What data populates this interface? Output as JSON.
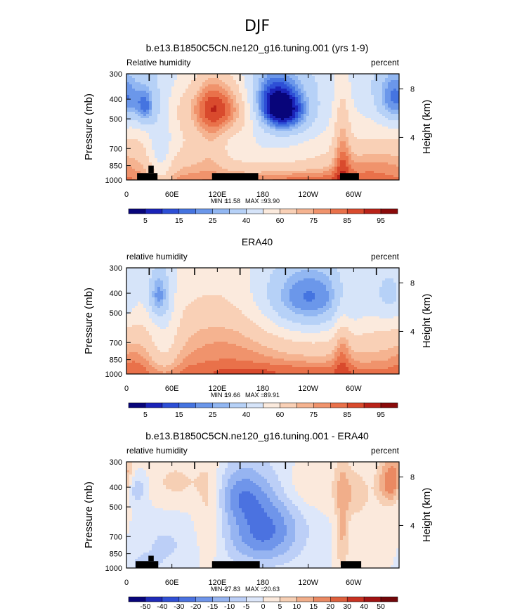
{
  "suptitle": "DJF",
  "palette": {
    "full": [
      "#08057a",
      "#1a23b8",
      "#2d4fd6",
      "#4574e0",
      "#6b97ea",
      "#92b7f2",
      "#b6d1f7",
      "#d6e4f9",
      "#fbeadd",
      "#f9d0b6",
      "#f5b390",
      "#f0936c",
      "#e9714a",
      "#d94a2d",
      "#b92218",
      "#8a0a0a"
    ],
    "diff": [
      "#08057a",
      "#1f2bb8",
      "#3150d5",
      "#4b72e0",
      "#6f95ea",
      "#96b4f1",
      "#bccff7",
      "#dde7fa",
      "#fbe9dc",
      "#f6cfb4",
      "#f1ae8a",
      "#ea8962",
      "#de603d",
      "#c83222",
      "#a11313",
      "#72070a"
    ]
  },
  "chart_data": [
    {
      "type": "heatmap",
      "panel_id": "model",
      "title": "b.e13.B1850C5CN.ne120_g16.tuning.001 (yrs 1-9)",
      "left_label": "Relative humidity",
      "right_label": "percent",
      "xlabel": "",
      "ylabel": "Pressure (mb)",
      "ylabel_right": "Height (km)",
      "x_ticks": [
        "0",
        "60E",
        "120E",
        "180",
        "120W",
        "60W"
      ],
      "x_range": [
        0,
        360
      ],
      "y_ticks": [
        "300",
        "400",
        "500",
        "700",
        "850",
        "1000"
      ],
      "y_range_mb": [
        300,
        1000
      ],
      "height_ticks": [
        "8",
        "4"
      ],
      "min_label": "MIN =",
      "min": "11.58",
      "max_label": "MAX =",
      "max": "93.90",
      "colorbar_levels": [
        5,
        10,
        15,
        20,
        25,
        30,
        40,
        50,
        60,
        70,
        75,
        80,
        85,
        90,
        95
      ],
      "colorbar_labels": [
        "5",
        "15",
        "25",
        "40",
        "60",
        "75",
        "85",
        "95"
      ],
      "palette": "full",
      "field": {
        "base_bottom": 80,
        "base_top": 45,
        "features": [
          {
            "lon": 135,
            "p": 430,
            "sx": 45,
            "sp": 110,
            "amp": 38
          },
          {
            "lon": 185,
            "p": 690,
            "sx": 70,
            "sp": 200,
            "amp": -15
          },
          {
            "lon": 25,
            "p": 440,
            "sx": 9,
            "sp": 70,
            "amp": -25
          },
          {
            "lon": 45,
            "p": 780,
            "sx": 12,
            "sp": 300,
            "amp": -20
          },
          {
            "lon": 355,
            "p": 400,
            "sx": 18,
            "sp": 90,
            "amp": -30
          },
          {
            "lon": 190,
            "p": 380,
            "sx": 28,
            "sp": 90,
            "amp": -35
          },
          {
            "lon": 205,
            "p": 470,
            "sx": 25,
            "sp": 80,
            "amp": -40
          },
          {
            "lon": 112,
            "p": 560,
            "sx": 15,
            "sp": 250,
            "amp": 12
          },
          {
            "lon": 285,
            "p": 650,
            "sx": 8,
            "sp": 350,
            "amp": 18
          },
          {
            "lon": 320,
            "p": 820,
            "sx": 30,
            "sp": 120,
            "amp": 6
          },
          {
            "lon": 230,
            "p": 980,
            "sx": 60,
            "sp": 60,
            "amp": 6
          }
        ]
      },
      "land_blocks": [
        {
          "lon0": 14,
          "lon1": 41,
          "p0": 925,
          "p1": 1000
        },
        {
          "lon0": 29,
          "lon1": 36,
          "p0": 850,
          "p1": 925
        },
        {
          "lon0": 113,
          "lon1": 174,
          "p0": 925,
          "p1": 1000
        },
        {
          "lon0": 282,
          "lon1": 307,
          "p0": 925,
          "p1": 1000
        }
      ]
    },
    {
      "type": "heatmap",
      "panel_id": "obs",
      "title": "ERA40",
      "left_label": "relative humidity",
      "right_label": "percent",
      "xlabel": "",
      "ylabel": "Pressure (mb)",
      "ylabel_right": "Height (km)",
      "x_ticks": [
        "0",
        "60E",
        "120E",
        "180",
        "120W",
        "60W"
      ],
      "x_range": [
        0,
        360
      ],
      "y_ticks": [
        "300",
        "400",
        "500",
        "700",
        "850",
        "1000"
      ],
      "y_range_mb": [
        300,
        1000
      ],
      "height_ticks": [
        "8",
        "4"
      ],
      "min_label": "MIN =",
      "min": "19.66",
      "max_label": "MAX =",
      "max": "89.91",
      "colorbar_levels": [
        5,
        10,
        15,
        20,
        25,
        30,
        40,
        50,
        60,
        70,
        75,
        80,
        85,
        90,
        95
      ],
      "colorbar_labels": [
        "5",
        "15",
        "25",
        "40",
        "60",
        "75",
        "85",
        "95"
      ],
      "palette": "full",
      "field": {
        "base_bottom": 80,
        "base_top": 52,
        "features": [
          {
            "lon": 240,
            "p": 420,
            "sx": 45,
            "sp": 120,
            "amp": -30
          },
          {
            "lon": 230,
            "p": 560,
            "sx": 60,
            "sp": 180,
            "amp": -10
          },
          {
            "lon": 42,
            "p": 410,
            "sx": 10,
            "sp": 80,
            "amp": -25
          },
          {
            "lon": 50,
            "p": 650,
            "sx": 14,
            "sp": 250,
            "amp": -15
          },
          {
            "lon": 350,
            "p": 420,
            "sx": 18,
            "sp": 100,
            "amp": -15
          },
          {
            "lon": 140,
            "p": 600,
            "sx": 50,
            "sp": 250,
            "amp": 10
          },
          {
            "lon": 285,
            "p": 700,
            "sx": 8,
            "sp": 300,
            "amp": 12
          },
          {
            "lon": 200,
            "p": 960,
            "sx": 90,
            "sp": 60,
            "amp": 5
          },
          {
            "lon": 10,
            "p": 900,
            "sx": 15,
            "sp": 150,
            "amp": 5
          }
        ]
      },
      "land_blocks": []
    },
    {
      "type": "heatmap",
      "panel_id": "diff",
      "title": "b.e13.B1850C5CN.ne120_g16.tuning.001 - ERA40",
      "left_label": "relative humidity",
      "right_label": "percent",
      "xlabel": "",
      "ylabel": "Pressure (mb)",
      "ylabel_right": "Height (km)",
      "x_ticks": [
        "0",
        "60E",
        "120E",
        "180",
        "120W",
        "60W"
      ],
      "x_range": [
        0,
        360
      ],
      "y_ticks": [
        "300",
        "400",
        "500",
        "700",
        "850",
        "1000"
      ],
      "y_range_mb": [
        300,
        1000
      ],
      "height_ticks": [
        "8",
        "4"
      ],
      "min_label": "MIN =",
      "min": "-27.83",
      "max_label": "MAX =",
      "max": "20.63",
      "colorbar_levels": [
        -50,
        -40,
        -30,
        -20,
        -15,
        -10,
        -5,
        0,
        5,
        10,
        15,
        20,
        30,
        40,
        50
      ],
      "colorbar_labels": [
        "-50",
        "-40",
        "-30",
        "-20",
        "-15",
        "-10",
        "-5",
        "0",
        "5",
        "10",
        "15",
        "20",
        "30",
        "40",
        "50"
      ],
      "palette": "diff",
      "field": {
        "base_bottom": 0,
        "base_top": 0,
        "features": [
          {
            "lon": 180,
            "p": 650,
            "sx": 35,
            "sp": 200,
            "amp": -22
          },
          {
            "lon": 150,
            "p": 430,
            "sx": 22,
            "sp": 90,
            "amp": -12
          },
          {
            "lon": 8,
            "p": 400,
            "sx": 12,
            "sp": 60,
            "amp": -22
          },
          {
            "lon": 355,
            "p": 380,
            "sx": 14,
            "sp": 70,
            "amp": 28
          },
          {
            "lon": 65,
            "p": 380,
            "sx": 30,
            "sp": 80,
            "amp": 6
          },
          {
            "lon": 110,
            "p": 560,
            "sx": 12,
            "sp": 220,
            "amp": 8
          },
          {
            "lon": 285,
            "p": 620,
            "sx": 6,
            "sp": 300,
            "amp": 10
          },
          {
            "lon": 240,
            "p": 400,
            "sx": 30,
            "sp": 80,
            "amp": 6
          },
          {
            "lon": 320,
            "p": 700,
            "sx": 25,
            "sp": 150,
            "amp": 3
          },
          {
            "lon": 50,
            "p": 780,
            "sx": 25,
            "sp": 150,
            "amp": -6
          },
          {
            "lon": 25,
            "p": 950,
            "sx": 12,
            "sp": 60,
            "amp": -8
          },
          {
            "lon": 300,
            "p": 430,
            "sx": 15,
            "sp": 80,
            "amp": 8
          }
        ]
      },
      "land_blocks": [
        {
          "lon0": 12,
          "lon1": 42,
          "p0": 925,
          "p1": 1000
        },
        {
          "lon0": 29,
          "lon1": 36,
          "p0": 870,
          "p1": 925
        },
        {
          "lon0": 113,
          "lon1": 176,
          "p0": 925,
          "p1": 1000
        },
        {
          "lon0": 283,
          "lon1": 310,
          "p0": 925,
          "p1": 1000
        }
      ]
    }
  ]
}
